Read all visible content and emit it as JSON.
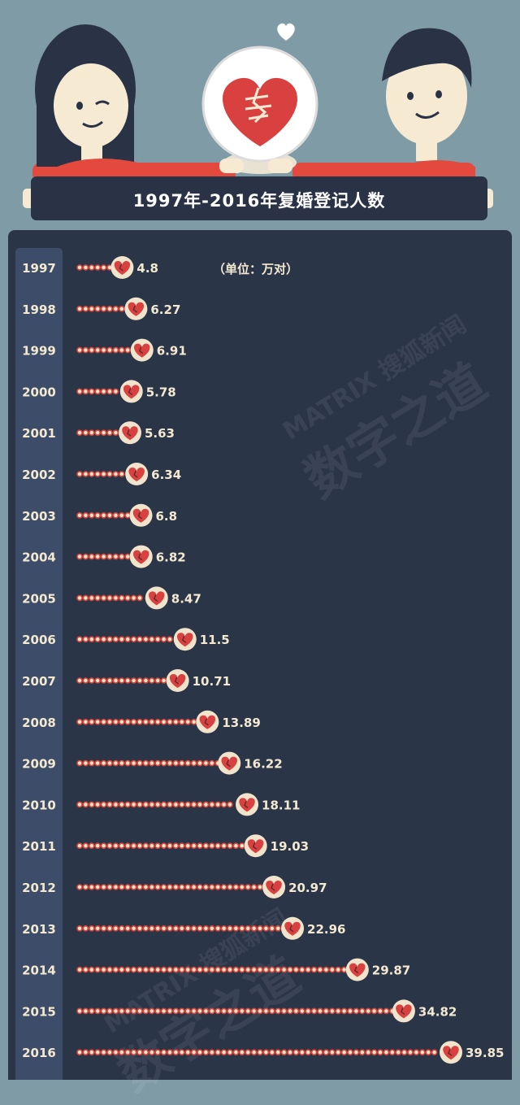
{
  "header": {
    "title": "1997年-2016年复婚登记人数"
  },
  "unit_label": "（单位：万对）",
  "watermark": {
    "small": "MATRIX 搜狐新闻",
    "large": "数字之道"
  },
  "colors": {
    "background": "#7f9ca6",
    "panel": "#2b3548",
    "year_column": "#3d4d69",
    "text": "#f3e9d0",
    "heart": "#d94040",
    "bead_fill": "#f1e4cc",
    "bead_ring": "#d8473b"
  },
  "chart_data": {
    "type": "bar",
    "title": "1997年-2016年复婚登记人数",
    "unit": "（单位：万对）",
    "categories": [
      "1997",
      "1998",
      "1999",
      "2000",
      "2001",
      "2002",
      "2003",
      "2004",
      "2005",
      "2006",
      "2007",
      "2008",
      "2009",
      "2010",
      "2011",
      "2012",
      "2013",
      "2014",
      "2015",
      "2016"
    ],
    "values": [
      4.8,
      6.27,
      6.91,
      5.78,
      5.63,
      6.34,
      6.8,
      6.82,
      8.47,
      11.5,
      10.71,
      13.89,
      16.22,
      18.11,
      19.03,
      20.97,
      22.96,
      29.87,
      34.82,
      39.85
    ],
    "value_labels": [
      "4.8",
      "6.27",
      "6.91",
      "5.78",
      "5.63",
      "6.34",
      "6.8",
      "6.82",
      "8.47",
      "11.5",
      "10.71",
      "13.89",
      "16.22",
      "18.11",
      "19.03",
      "20.97",
      "22.96",
      "29.87",
      "34.82",
      "39.85"
    ],
    "orientation": "horizontal",
    "mark": "bead-chain with heart",
    "grid": false
  }
}
